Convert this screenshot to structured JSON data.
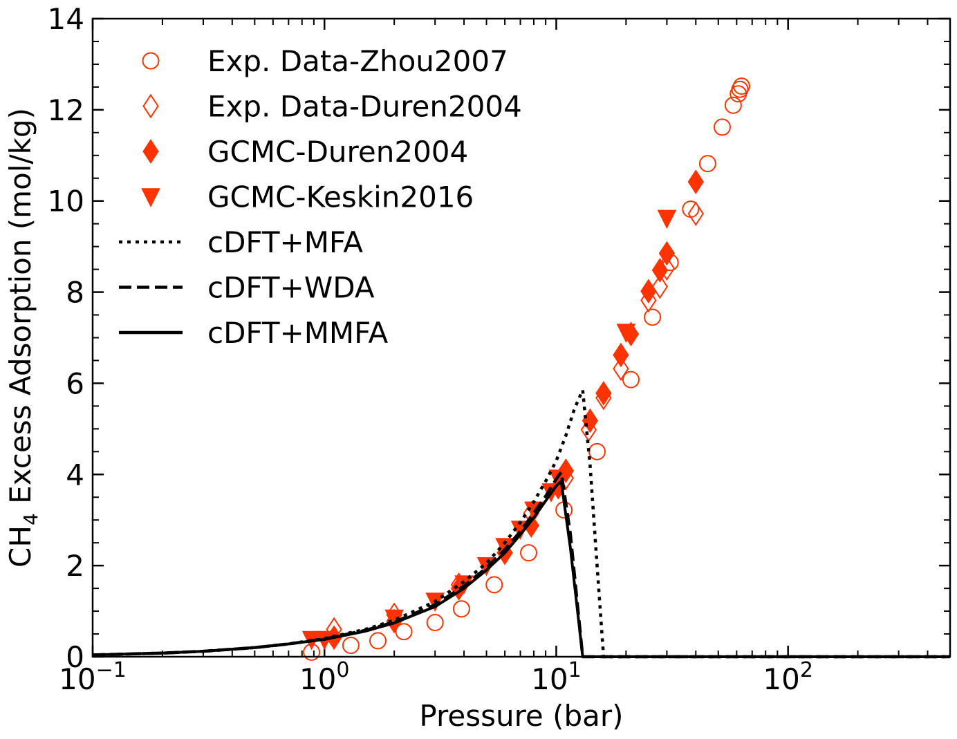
{
  "chart_data": {
    "type": "scatter",
    "xlabel": "Pressure (bar)",
    "ylabel": {
      "base": "CH",
      "sub": "4",
      "rest": " Excess Adsorption (mol/kg)"
    },
    "x_scale": "log",
    "xlim": [
      0.1,
      500
    ],
    "ylim": [
      0,
      14
    ],
    "x_ticks": [
      {
        "value": 0.1,
        "base": "10",
        "exp": "−1"
      },
      {
        "value": 1,
        "base": "10",
        "exp": "0"
      },
      {
        "value": 10,
        "base": "10",
        "exp": "1"
      },
      {
        "value": 100,
        "base": "10",
        "exp": "2"
      }
    ],
    "y_ticks": [
      0,
      2,
      4,
      6,
      8,
      10,
      12,
      14
    ],
    "legend_position": "top-left",
    "colors": {
      "experiment": "#ff3300",
      "model": "#000000"
    },
    "series": [
      {
        "name": "Exp. Data-Zhou2007",
        "marker": "circle-open",
        "points": [
          [
            0.88,
            0.1
          ],
          [
            1.3,
            0.25
          ],
          [
            1.7,
            0.35
          ],
          [
            2.2,
            0.55
          ],
          [
            3.0,
            0.75
          ],
          [
            3.9,
            1.05
          ],
          [
            5.4,
            1.58
          ],
          [
            7.6,
            2.28
          ],
          [
            10.8,
            3.22
          ],
          [
            15.0,
            4.5
          ],
          [
            21.0,
            6.08
          ],
          [
            26.0,
            7.45
          ],
          [
            31.0,
            8.65
          ],
          [
            38.0,
            9.82
          ],
          [
            45.0,
            10.82
          ],
          [
            52.0,
            11.62
          ],
          [
            58.0,
            12.1
          ],
          [
            61.0,
            12.35
          ],
          [
            62.0,
            12.45
          ],
          [
            63.0,
            12.52
          ]
        ]
      },
      {
        "name": "Exp. Data-Duren2004",
        "marker": "diamond-open",
        "points": [
          [
            1.1,
            0.6
          ],
          [
            2.0,
            0.92
          ],
          [
            3.8,
            1.58
          ],
          [
            7.8,
            3.15
          ],
          [
            11.0,
            3.92
          ],
          [
            13.8,
            4.98
          ],
          [
            16.0,
            5.68
          ],
          [
            19.0,
            6.32
          ],
          [
            25.0,
            7.82
          ],
          [
            28.0,
            8.12
          ],
          [
            30.0,
            8.52
          ],
          [
            40.0,
            9.72
          ]
        ]
      },
      {
        "name": "GCMC-Duren2004",
        "marker": "diamond-filled",
        "points": [
          [
            1.1,
            0.42
          ],
          [
            2.0,
            0.78
          ],
          [
            3.8,
            1.5
          ],
          [
            6.0,
            2.28
          ],
          [
            7.8,
            2.88
          ],
          [
            10.2,
            3.72
          ],
          [
            11.0,
            4.08
          ],
          [
            14.0,
            5.18
          ],
          [
            16.0,
            5.78
          ],
          [
            19.0,
            6.62
          ],
          [
            21.0,
            7.08
          ],
          [
            25.0,
            8.02
          ],
          [
            28.0,
            8.48
          ],
          [
            30.0,
            8.85
          ],
          [
            40.0,
            10.42
          ]
        ]
      },
      {
        "name": "GCMC-Keskin2016",
        "marker": "triangle-down-filled",
        "points": [
          [
            0.88,
            0.38
          ],
          [
            1.0,
            0.38
          ],
          [
            2.0,
            0.85
          ],
          [
            3.0,
            1.22
          ],
          [
            4.0,
            1.6
          ],
          [
            5.0,
            2.0
          ],
          [
            6.0,
            2.42
          ],
          [
            7.0,
            2.8
          ],
          [
            8.0,
            3.22
          ],
          [
            9.5,
            3.62
          ],
          [
            10.2,
            3.92
          ],
          [
            20.0,
            7.12
          ],
          [
            30.0,
            9.62
          ]
        ]
      },
      {
        "name": "cDFT+MFA",
        "marker": "line-dotted",
        "points": [
          [
            0.1,
            0.04
          ],
          [
            0.2,
            0.08
          ],
          [
            0.3,
            0.12
          ],
          [
            0.5,
            0.2
          ],
          [
            0.7,
            0.28
          ],
          [
            1.0,
            0.4
          ],
          [
            1.5,
            0.6
          ],
          [
            2.0,
            0.8
          ],
          [
            3.0,
            1.21
          ],
          [
            4.0,
            1.65
          ],
          [
            5.0,
            2.05
          ],
          [
            6.0,
            2.5
          ],
          [
            7.0,
            2.95
          ],
          [
            8.0,
            3.4
          ],
          [
            9.0,
            3.85
          ],
          [
            10.0,
            4.3
          ],
          [
            11.0,
            4.85
          ],
          [
            12.0,
            5.45
          ],
          [
            13.0,
            5.85
          ],
          [
            14.0,
            4.2
          ],
          [
            15.0,
            2.0
          ],
          [
            16.0,
            0.0
          ],
          [
            20.0,
            0.0
          ],
          [
            100.0,
            0.0
          ],
          [
            500.0,
            0.0
          ]
        ]
      },
      {
        "name": "cDFT+WDA",
        "marker": "line-dashed",
        "points": [
          [
            0.1,
            0.04
          ],
          [
            0.2,
            0.08
          ],
          [
            0.3,
            0.12
          ],
          [
            0.5,
            0.2
          ],
          [
            0.7,
            0.28
          ],
          [
            1.0,
            0.39
          ],
          [
            1.5,
            0.58
          ],
          [
            2.0,
            0.76
          ],
          [
            3.0,
            1.14
          ],
          [
            4.0,
            1.55
          ],
          [
            5.0,
            1.95
          ],
          [
            6.0,
            2.35
          ],
          [
            7.0,
            2.75
          ],
          [
            8.0,
            3.15
          ],
          [
            9.0,
            3.52
          ],
          [
            10.0,
            3.9
          ],
          [
            10.5,
            4.05
          ],
          [
            11.5,
            2.7
          ],
          [
            13.0,
            0.0
          ],
          [
            20.0,
            0.0
          ],
          [
            100.0,
            0.0
          ],
          [
            500.0,
            0.0
          ]
        ]
      },
      {
        "name": "cDFT+MMFA",
        "marker": "line-solid",
        "points": [
          [
            0.1,
            0.04
          ],
          [
            0.2,
            0.08
          ],
          [
            0.3,
            0.12
          ],
          [
            0.5,
            0.2
          ],
          [
            0.7,
            0.28
          ],
          [
            1.0,
            0.38
          ],
          [
            1.5,
            0.56
          ],
          [
            2.0,
            0.74
          ],
          [
            3.0,
            1.1
          ],
          [
            4.0,
            1.5
          ],
          [
            5.0,
            1.9
          ],
          [
            6.0,
            2.28
          ],
          [
            7.0,
            2.68
          ],
          [
            8.0,
            3.05
          ],
          [
            9.0,
            3.42
          ],
          [
            10.0,
            3.75
          ],
          [
            10.5,
            3.85
          ],
          [
            11.5,
            2.4
          ],
          [
            13.0,
            0.0
          ],
          [
            20.0,
            0.0
          ],
          [
            100.0,
            0.0
          ],
          [
            500.0,
            0.0
          ]
        ]
      }
    ]
  }
}
